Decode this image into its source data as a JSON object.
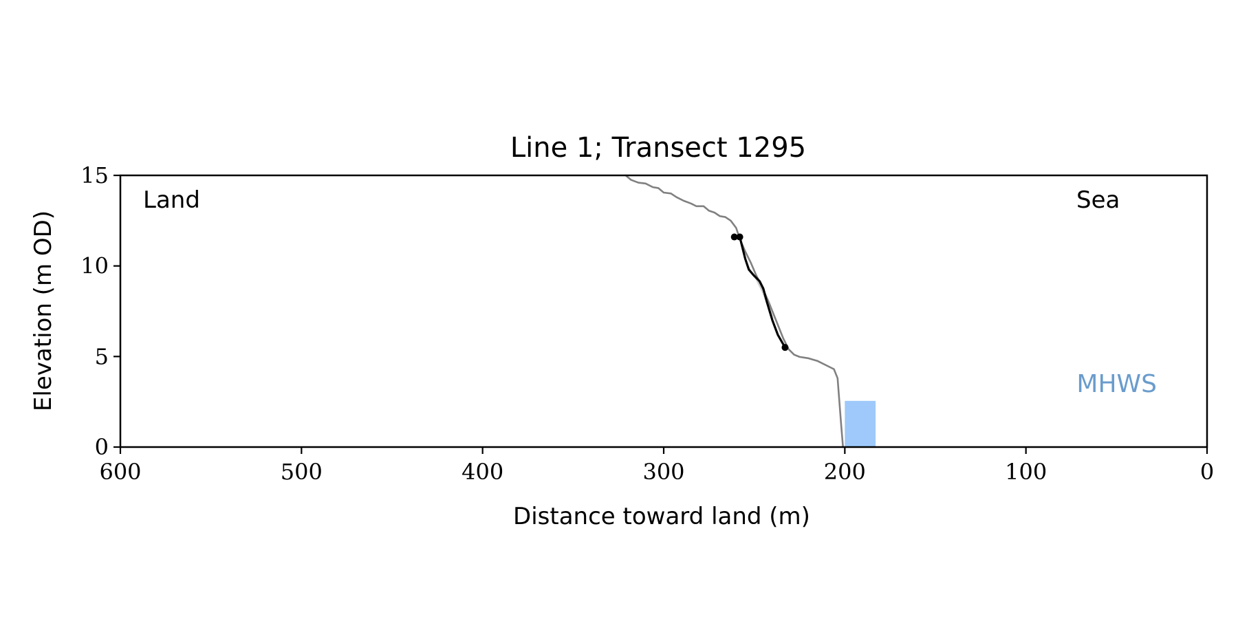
{
  "chart_data": {
    "type": "line",
    "title": "Line 1; Transect 1295",
    "xlabel": "Distance toward land (m)",
    "ylabel": "Elevation (m OD)",
    "xlim": [
      600,
      0
    ],
    "ylim": [
      0,
      15
    ],
    "x_ticks": [
      600,
      500,
      400,
      300,
      200,
      100,
      0
    ],
    "y_ticks": [
      0,
      5,
      10,
      15
    ],
    "grid": false,
    "corner_labels": {
      "left": "Land",
      "right": "Sea"
    },
    "series": [
      {
        "color": "#808080",
        "points": [
          [
            321,
            15.0
          ],
          [
            318,
            14.75
          ],
          [
            314,
            14.6
          ],
          [
            310,
            14.55
          ],
          [
            306,
            14.35
          ],
          [
            303,
            14.3
          ],
          [
            300,
            14.05
          ],
          [
            296,
            14.0
          ],
          [
            293,
            13.8
          ],
          [
            289,
            13.6
          ],
          [
            285,
            13.45
          ],
          [
            282,
            13.3
          ],
          [
            278,
            13.3
          ],
          [
            275,
            13.05
          ],
          [
            272,
            12.95
          ],
          [
            269,
            12.75
          ],
          [
            266,
            12.7
          ],
          [
            263,
            12.5
          ],
          [
            260,
            12.1
          ],
          [
            258,
            11.5
          ],
          [
            255,
            10.8
          ],
          [
            252,
            10.2
          ],
          [
            249,
            9.5
          ],
          [
            246,
            8.9
          ],
          [
            242,
            8.0
          ],
          [
            238,
            7.0
          ],
          [
            234,
            6.0
          ],
          [
            231,
            5.4
          ],
          [
            228,
            5.1
          ],
          [
            225,
            4.98
          ],
          [
            220,
            4.9
          ],
          [
            215,
            4.75
          ],
          [
            210,
            4.5
          ],
          [
            206,
            4.3
          ],
          [
            204,
            3.8
          ],
          [
            203,
            2.5
          ],
          [
            202,
            1.2
          ],
          [
            201,
            0.0
          ]
        ]
      },
      {
        "color": "#000000",
        "points": [
          [
            261,
            11.6
          ],
          [
            258,
            11.6
          ],
          [
            257,
            11.2
          ],
          [
            255,
            10.4
          ],
          [
            253,
            9.8
          ],
          [
            250,
            9.45
          ],
          [
            247,
            9.15
          ],
          [
            245,
            8.75
          ],
          [
            243,
            8.0
          ],
          [
            240,
            7.0
          ],
          [
            237,
            6.2
          ],
          [
            233,
            5.5
          ]
        ]
      }
    ],
    "markers": [
      {
        "x": 261,
        "y": 11.6
      },
      {
        "x": 258,
        "y": 11.6
      },
      {
        "x": 233,
        "y": 5.5
      }
    ],
    "shaded_region": {
      "color": "#cccccc",
      "upper": [
        [
          260,
          12.0
        ],
        [
          257,
          11.2
        ],
        [
          254,
          10.2
        ],
        [
          250,
          9.4
        ],
        [
          246,
          8.6
        ],
        [
          242,
          7.6
        ],
        [
          239,
          7.0
        ]
      ],
      "lower": [
        [
          239,
          7.0
        ],
        [
          242,
          7.9
        ],
        [
          245,
          8.6
        ],
        [
          248,
          9.2
        ],
        [
          251,
          9.6
        ],
        [
          254,
          10.0
        ],
        [
          256,
          10.8
        ],
        [
          258,
          11.6
        ]
      ]
    },
    "mhws_band": {
      "label": "MHWS",
      "x_range": [
        200,
        183
      ],
      "y_range": [
        0,
        2.55
      ],
      "color": "#9ec9fa",
      "label_color": "#6a9ccc"
    }
  }
}
